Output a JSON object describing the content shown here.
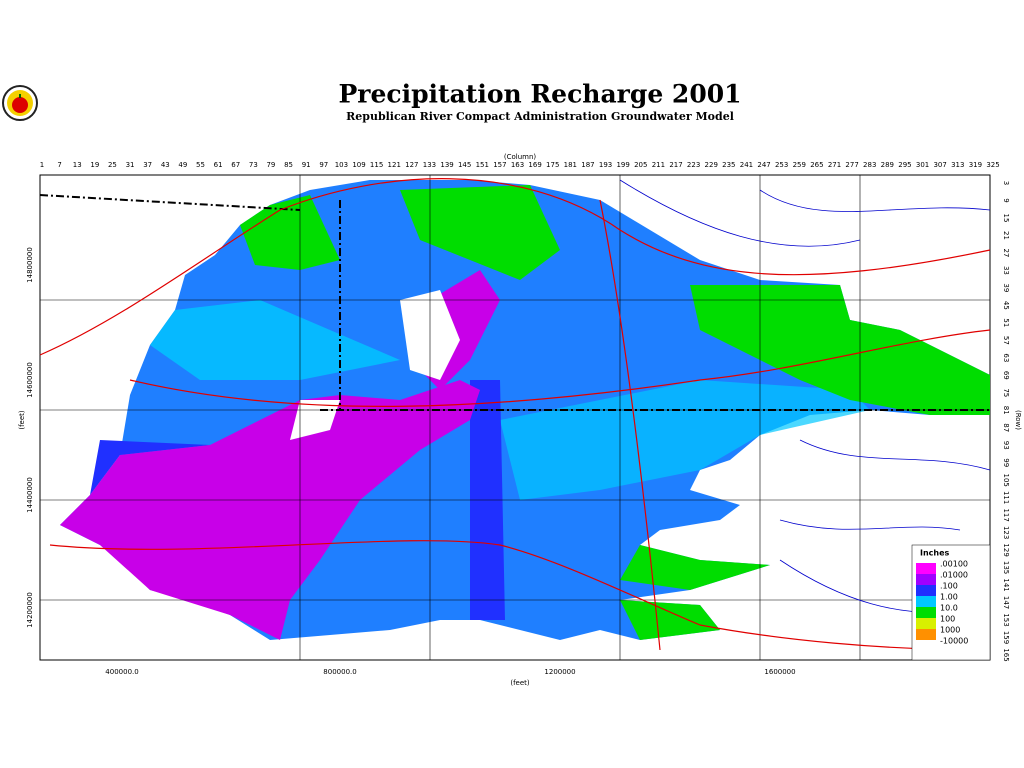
{
  "header": {
    "title": "Precipitation Recharge 2001",
    "subtitle": "Republican River Compact Administration Groundwater Model"
  },
  "map": {
    "column_label": "(Column)",
    "columns": [
      1,
      7,
      13,
      19,
      25,
      31,
      37,
      43,
      49,
      55,
      61,
      67,
      73,
      79,
      85,
      91,
      97,
      103,
      109,
      115,
      121,
      127,
      133,
      139,
      145,
      151,
      157,
      163,
      169,
      175,
      181,
      187,
      193,
      199,
      205,
      211,
      217,
      223,
      229,
      235,
      241,
      247,
      253,
      259,
      265,
      271,
      277,
      283,
      289,
      295,
      301,
      307,
      313,
      319,
      325
    ],
    "row_label": "(Row)",
    "rows": [
      3,
      9,
      15,
      21,
      27,
      33,
      39,
      45,
      51,
      57,
      63,
      69,
      75,
      81,
      87,
      93,
      99,
      105,
      111,
      117,
      123,
      129,
      135,
      141,
      147,
      153,
      159,
      165
    ],
    "x_label": "(feet)",
    "x_ticks": [
      "400000.0",
      "800000.0",
      "1200000",
      "1600000"
    ],
    "y_label": "(feet)",
    "y_ticks": [
      "14800000",
      "14600000",
      "14400000",
      "14200000"
    ]
  },
  "legend": {
    "title": "Inches",
    "labels": [
      ".00100",
      ".01000",
      ".100",
      "1.00",
      "10.0",
      "100",
      "1000",
      "-10000"
    ]
  }
}
